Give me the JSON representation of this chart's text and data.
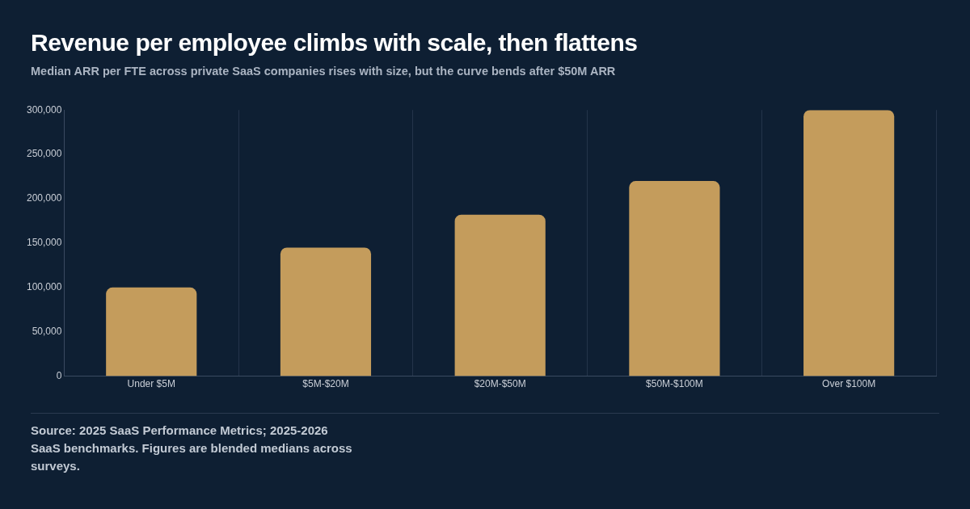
{
  "chart_data": {
    "type": "bar",
    "title": "Revenue per employee climbs with scale, then flattens",
    "subtitle": "Median ARR per FTE across private SaaS companies rises with size, but the curve bends after $50M ARR",
    "categories": [
      "Under $5M",
      "$5M-$20M",
      "$20M-$50M",
      "$50M-$100M",
      "Over $100M"
    ],
    "values": [
      100000,
      145000,
      182000,
      220000,
      300000
    ],
    "color": "#c49c5c",
    "ylim": [
      0,
      300000
    ],
    "yticks": [
      0,
      {
        "value": 50000,
        "label": "50,000"
      },
      {
        "value": 100000,
        "label": "100,000"
      },
      {
        "value": 150000,
        "label": "150,000"
      },
      {
        "value": 200000,
        "label": "200,000"
      },
      {
        "value": 250000,
        "label": "250,000"
      },
      {
        "value": 300000,
        "label": "300,000"
      }
    ],
    "grid": "x",
    "annotations": [
      "Source: 2025 SaaS Performance Metrics; 2025-2026 SaaS benchmarks. Figures are blended medians across surveys."
    ]
  }
}
